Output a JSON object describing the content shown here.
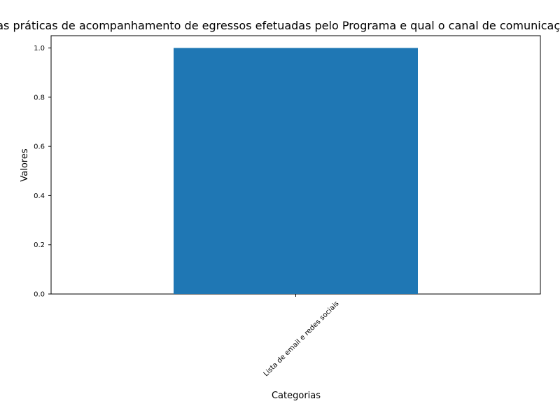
{
  "chart_data": {
    "type": "bar",
    "title": "Quais as práticas de acompanhamento de egressos efetuadas pelo Programa e qual o canal de comunicação utilizado?",
    "xlabel": "Categorias",
    "ylabel": "Valores",
    "categories": [
      "Lista de email e redes sociais"
    ],
    "values": [
      1.0
    ],
    "ylim": [
      0,
      1.05
    ],
    "yticks": [
      "0.0",
      "0.2",
      "0.4",
      "0.6",
      "0.8",
      "1.0"
    ],
    "grid": false,
    "legend": "none",
    "bar_color": "#1f77b4"
  }
}
